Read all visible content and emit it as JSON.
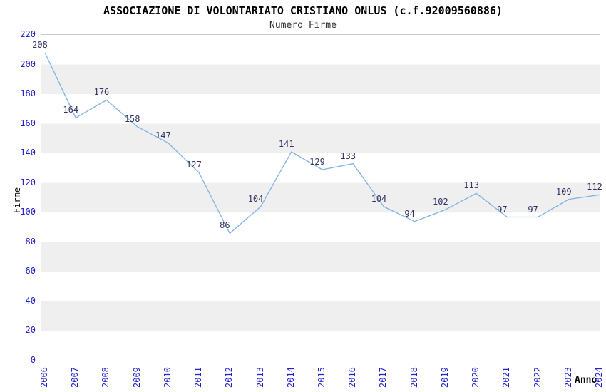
{
  "chart_data": {
    "type": "line",
    "title": "ASSOCIAZIONE DI VOLONTARIATO CRISTIANO ONLUS (c.f.92009560886)",
    "subtitle": "Numero Firme",
    "xlabel": "Anno",
    "ylabel": "Firme",
    "categories": [
      "2006",
      "2007",
      "2008",
      "2009",
      "2010",
      "2011",
      "2012",
      "2013",
      "2014",
      "2015",
      "2016",
      "2017",
      "2018",
      "2019",
      "2020",
      "2021",
      "2022",
      "2023",
      "2024"
    ],
    "values": [
      208,
      164,
      176,
      158,
      147,
      127,
      86,
      104,
      141,
      129,
      133,
      104,
      94,
      102,
      113,
      97,
      97,
      109,
      112
    ],
    "ylim": [
      0,
      220
    ],
    "ytick_step": 20,
    "grid": "alternating-horizontal-bands",
    "legend": null,
    "colors": {
      "line": "#7fb2e5",
      "point_labels": "#333366",
      "tick_labels": "#2323cc",
      "band": "#efefef",
      "plot_border": "#c9c9c9",
      "title": "#000000",
      "subtitle": "#333333",
      "axis_titles": "#000000",
      "background": "#ffffff"
    }
  }
}
